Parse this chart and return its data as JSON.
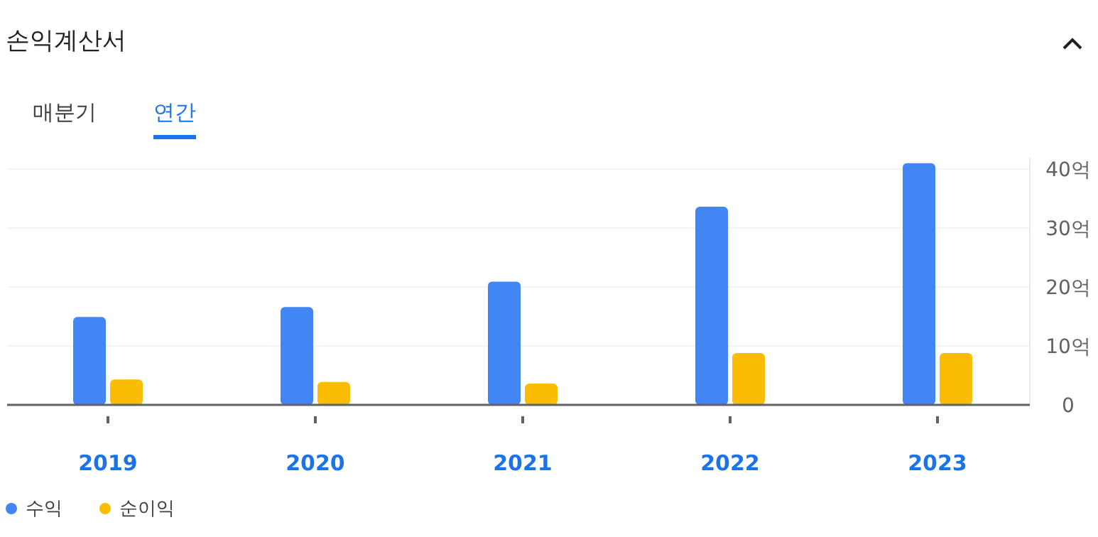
{
  "chart_data": {
    "type": "bar",
    "title": "손익계산서",
    "annotations": [
      "매분기",
      "연간"
    ],
    "categories": [
      "2019",
      "2020",
      "2021",
      "2022",
      "2023"
    ],
    "series": [
      {
        "name": "수익",
        "color": "#4285f4",
        "values": [
          14.9,
          16.6,
          20.9,
          33.6,
          41.0
        ]
      },
      {
        "name": "순이익",
        "color": "#fbbc04",
        "values": [
          4.3,
          3.9,
          3.6,
          8.8,
          8.8
        ]
      }
    ],
    "ylim": [
      0,
      42
    ],
    "yticks": [
      0,
      {
        "value": 10,
        "label": "10억"
      },
      {
        "value": 20,
        "label": "20억"
      },
      {
        "value": 30,
        "label": "30억"
      },
      {
        "value": 40,
        "label": "40억"
      }
    ],
    "grid": "y",
    "legend": "bottom left"
  }
}
